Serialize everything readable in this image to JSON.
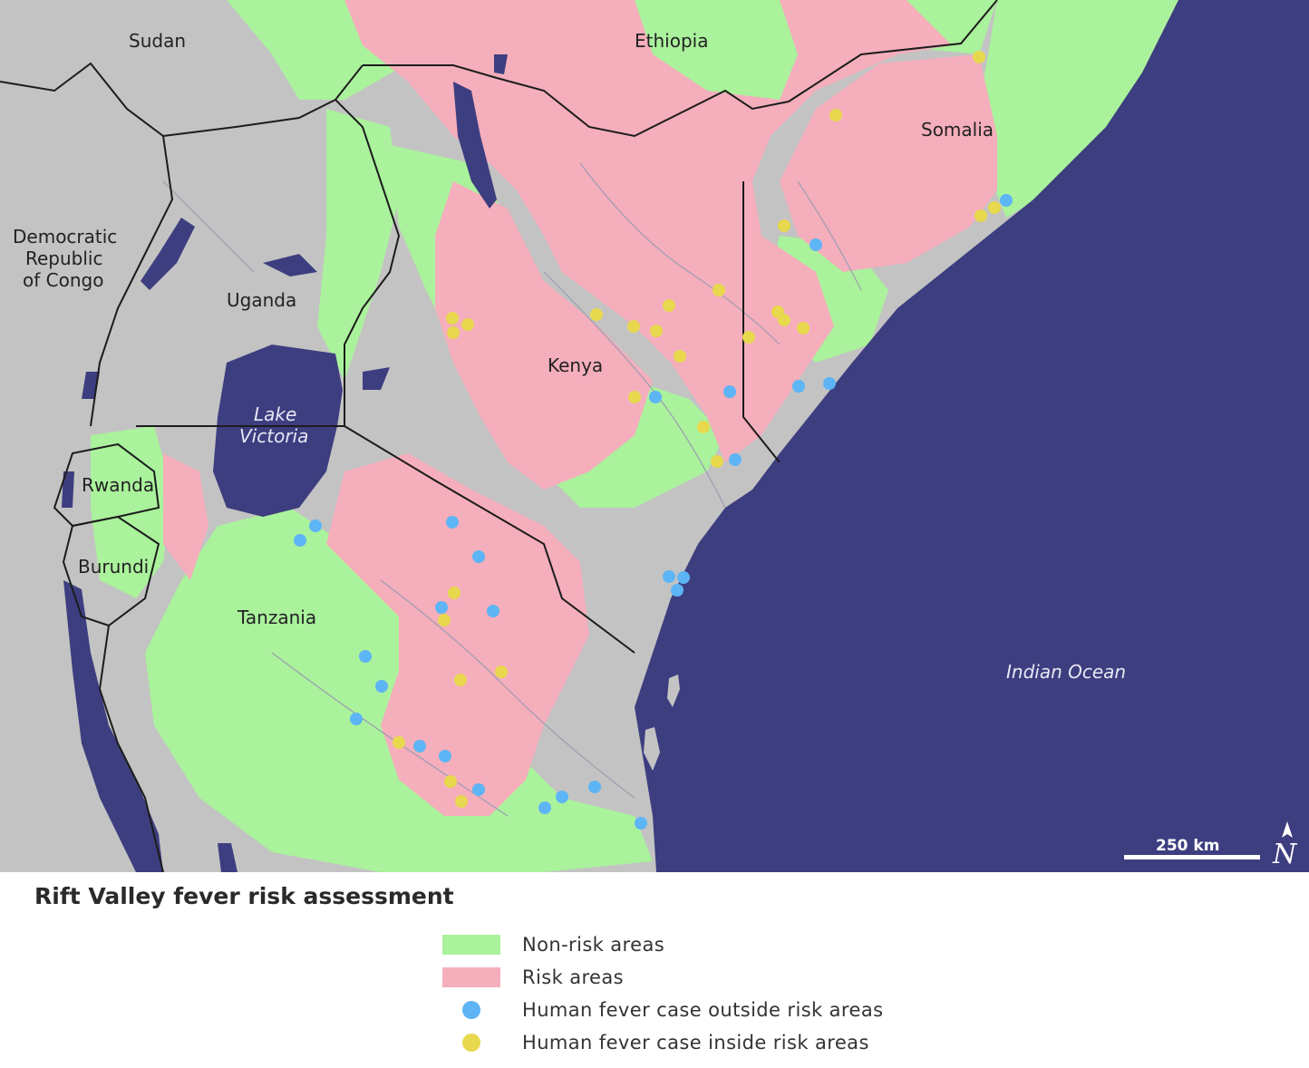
{
  "map": {
    "colors": {
      "land": "#c3c3c3",
      "non_risk": "#aaf29c",
      "risk": "#f5aebc",
      "water": "#3d3e80",
      "border": "#1c1c1c",
      "river": "#9c9cb0",
      "case_outside": "#5eb5f5",
      "case_inside": "#e8d84e"
    },
    "country_labels": {
      "sudan": "Sudan",
      "ethiopia": "Ethiopia",
      "somalia": "Somalia",
      "drc": [
        "Democratic",
        "Republic",
        "of Congo"
      ],
      "uganda": "Uganda",
      "kenya": "Kenya",
      "rwanda": "Rwanda",
      "burundi": "Burundi",
      "tanzania": "Tanzania"
    },
    "water_labels": {
      "lake_victoria": [
        "Lake",
        "Victoria"
      ],
      "indian_ocean": "Indian Ocean"
    },
    "scale_bar": {
      "label": "250 km"
    },
    "north_arrow": {
      "icon": "north-arrow-icon",
      "letter": "N"
    }
  },
  "legend": {
    "title": "Rift Valley fever risk assessment",
    "items": [
      {
        "label": "Non-risk areas",
        "swatch": "rect",
        "color": "#aaf29c"
      },
      {
        "label": "Risk areas",
        "swatch": "rect",
        "color": "#f5aebc"
      },
      {
        "label": "Human fever case outside risk areas",
        "swatch": "dot",
        "color": "#5eb5f5"
      },
      {
        "label": "Human fever case inside risk areas",
        "swatch": "dot",
        "color": "#e8d84e"
      }
    ]
  }
}
